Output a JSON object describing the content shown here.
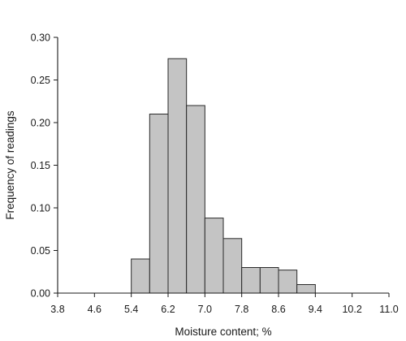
{
  "chart_data": {
    "type": "bar",
    "title": "",
    "xlabel": "Moisture content; %",
    "ylabel": "Frequency of readings",
    "xlim": [
      3.8,
      11.0
    ],
    "ylim": [
      0,
      0.3
    ],
    "x_ticks": [
      "3.8",
      "4.6",
      "5.4",
      "6.2",
      "7.0",
      "7.8",
      "8.6",
      "9.4",
      "10.2",
      "11.0"
    ],
    "y_ticks": [
      "0.00",
      "0.05",
      "0.10",
      "0.15",
      "0.20",
      "0.25",
      "0.30"
    ],
    "bin_edges": [
      5.4,
      5.8,
      6.2,
      6.6,
      7.0,
      7.4,
      7.8,
      8.2,
      8.6,
      9.0,
      9.4
    ],
    "values": [
      0.04,
      0.21,
      0.275,
      0.22,
      0.088,
      0.064,
      0.03,
      0.03,
      0.027,
      0.01
    ],
    "bar_fill": "#c4c4c4",
    "bar_stroke": "#2a2a2a",
    "grid": false
  }
}
